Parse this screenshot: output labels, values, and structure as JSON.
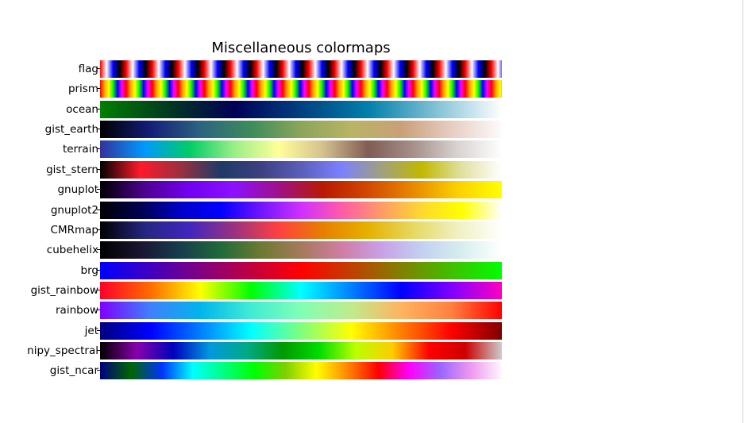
{
  "chart_data": {
    "type": "heatmap",
    "title": "Miscellaneous colormaps",
    "xlabel": "",
    "ylabel": "",
    "grid": false,
    "colormaps": [
      {
        "name": "flag",
        "periodic": true,
        "repeat": 15.4,
        "stops": [
          "#ff0000",
          "#ffffff",
          "#0000ff",
          "#000000",
          "#ff0000"
        ]
      },
      {
        "name": "prism",
        "periodic": true,
        "repeat": 15.4,
        "stops": [
          "#ff0000",
          "#ffa500",
          "#ffff00",
          "#00ff00",
          "#0000ff",
          "#ff00ff",
          "#ff0000"
        ]
      },
      {
        "name": "ocean",
        "stops": [
          "#008000",
          "#003a1f",
          "#000055",
          "#004080",
          "#0080aa",
          "#80c0d5",
          "#ffffff"
        ]
      },
      {
        "name": "gist_earth",
        "stops": [
          "#000000",
          "#141e78",
          "#2d6480",
          "#3c8c5a",
          "#8ca55a",
          "#b9b464",
          "#c9a078",
          "#e6cdc3",
          "#fdfbfb"
        ]
      },
      {
        "name": "terrain",
        "stops": [
          "#333399",
          "#0099ff",
          "#00cc66",
          "#99ee88",
          "#ffff99",
          "#d4c08e",
          "#805c54",
          "#a58f89",
          "#d8d2d0",
          "#ffffff"
        ]
      },
      {
        "name": "gist_stern",
        "stops": [
          "#000000",
          "#ff1a2a",
          "#9a3040",
          "#1e3a66",
          "#3c4080",
          "#5a5fbb",
          "#7c80ff",
          "#a0a080",
          "#c0b800",
          "#e0e0a0",
          "#ffffff"
        ]
      },
      {
        "name": "gnuplot",
        "stops": [
          "#000000",
          "#4e0090",
          "#7200f0",
          "#8c11ff",
          "#a01088",
          "#b81a00",
          "#d24800",
          "#e88800",
          "#fbd000",
          "#ffff00"
        ]
      },
      {
        "name": "gnuplot2",
        "stops": [
          "#000000",
          "#000050",
          "#0000c8",
          "#0000ff",
          "#7015ff",
          "#d030ff",
          "#ff5aa8",
          "#ff9a68",
          "#ffd830",
          "#ffff00",
          "#ffffff"
        ]
      },
      {
        "name": "CMRmap",
        "stops": [
          "#000000",
          "#262680",
          "#4026bf",
          "#993380",
          "#ff4040",
          "#e68000",
          "#e6b000",
          "#e6d860",
          "#f0f0c0",
          "#ffffff"
        ]
      },
      {
        "name": "cubehelix",
        "stops": [
          "#000000",
          "#1a1530",
          "#163d4e",
          "#1f6a3a",
          "#6c7a31",
          "#a57a5c",
          "#d07ca2",
          "#c8a0e8",
          "#c2d0f0",
          "#d6eeee",
          "#ffffff"
        ]
      },
      {
        "name": "brg",
        "stops": [
          "#0000ff",
          "#800080",
          "#ff0000",
          "#808000",
          "#00ff00"
        ]
      },
      {
        "name": "gist_rainbow",
        "stops": [
          "#ff0029",
          "#ff6b00",
          "#ffff00",
          "#00ff00",
          "#00ffff",
          "#0080ff",
          "#0000ff",
          "#8000ff",
          "#ff00bf"
        ]
      },
      {
        "name": "rainbow",
        "stops": [
          "#8000ff",
          "#4080fd",
          "#00b5eb",
          "#40ecd4",
          "#80ffb4",
          "#c0eb8d",
          "#ffb360",
          "#ff8040",
          "#ff0000"
        ]
      },
      {
        "name": "jet",
        "stops": [
          "#00007f",
          "#0000ff",
          "#007fff",
          "#00ffff",
          "#7fff7f",
          "#ffff00",
          "#ff7f00",
          "#ff0000",
          "#7f0000"
        ]
      },
      {
        "name": "nipy_spectral",
        "stops": [
          "#000000",
          "#8800aa",
          "#0000bb",
          "#0099dd",
          "#00aa88",
          "#009900",
          "#00dd00",
          "#bbff00",
          "#ffcc00",
          "#ff0000",
          "#cc0000",
          "#cccccc"
        ]
      },
      {
        "name": "gist_ncar",
        "stops": [
          "#000080",
          "#006600",
          "#0033ff",
          "#00ffff",
          "#00ff80",
          "#00ff00",
          "#7fcf00",
          "#ffff00",
          "#ff8800",
          "#ff0000",
          "#ff00ff",
          "#9966ff",
          "#ee99ee",
          "#fef8fe"
        ]
      }
    ]
  }
}
